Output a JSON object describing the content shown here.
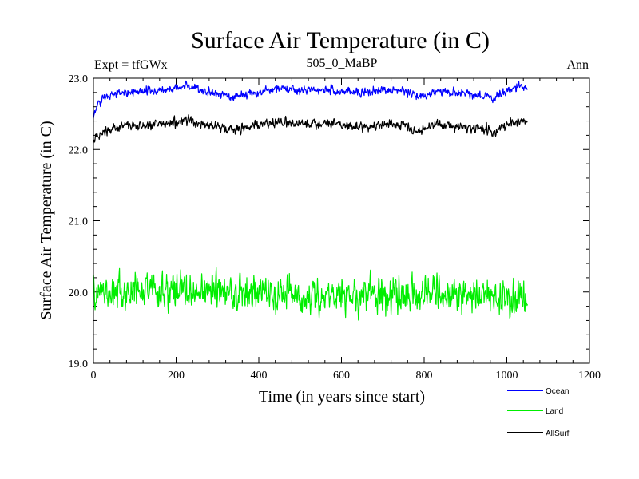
{
  "chart_data": {
    "type": "line",
    "title": "Surface Air Temperature (in C)",
    "subtitle_left": "Expt = tfGWx",
    "subtitle_center": "505_0_MaBP",
    "subtitle_right": "Ann",
    "xlabel": "Time (in years since start)",
    "ylabel": "Surface Air Temperature (in C)",
    "xlim": [
      0,
      1200
    ],
    "ylim": [
      19.0,
      23.0
    ],
    "x_ticks": [
      0,
      200,
      400,
      600,
      800,
      1000,
      1200
    ],
    "x_tick_labels": [
      "0",
      "200",
      "400",
      "600",
      "800",
      "1000",
      "1200"
    ],
    "y_ticks": [
      19.0,
      20.0,
      21.0,
      22.0,
      23.0
    ],
    "y_tick_labels": [
      "19.0",
      "20.0",
      "21.0",
      "22.0",
      "23.0"
    ],
    "grid": false,
    "legend_position": "bottom-right-outside",
    "series": [
      {
        "name": "Ocean",
        "color": "#0000ff",
        "noise": 0.04,
        "x": [
          0,
          10,
          30,
          60,
          100,
          150,
          200,
          230,
          260,
          300,
          340,
          380,
          420,
          450,
          500,
          550,
          600,
          650,
          700,
          750,
          790,
          820,
          850,
          900,
          950,
          965,
          1000,
          1030,
          1050
        ],
        "values": [
          22.47,
          22.62,
          22.75,
          22.8,
          22.8,
          22.82,
          22.85,
          22.9,
          22.83,
          22.78,
          22.74,
          22.78,
          22.82,
          22.86,
          22.82,
          22.84,
          22.83,
          22.8,
          22.83,
          22.82,
          22.73,
          22.8,
          22.82,
          22.78,
          22.75,
          22.72,
          22.82,
          22.88,
          22.85
        ]
      },
      {
        "name": "Land",
        "color": "#00ee00",
        "noise": 0.17,
        "x": [
          0,
          100,
          200,
          300,
          400,
          500,
          600,
          700,
          800,
          900,
          1000,
          1050
        ],
        "values": [
          20.0,
          20.0,
          20.0,
          20.0,
          20.0,
          19.98,
          19.95,
          19.95,
          20.0,
          19.93,
          19.92,
          19.95
        ]
      },
      {
        "name": "AllSurf",
        "color": "#000000",
        "noise": 0.045,
        "x": [
          0,
          10,
          30,
          60,
          100,
          150,
          200,
          230,
          260,
          300,
          340,
          380,
          420,
          450,
          500,
          550,
          600,
          650,
          700,
          750,
          790,
          820,
          850,
          900,
          950,
          965,
          1000,
          1030,
          1050
        ],
        "values": [
          22.1,
          22.2,
          22.28,
          22.32,
          22.33,
          22.35,
          22.38,
          22.42,
          22.36,
          22.32,
          22.28,
          22.32,
          22.36,
          22.38,
          22.36,
          22.36,
          22.35,
          22.33,
          22.35,
          22.34,
          22.27,
          22.33,
          22.35,
          22.32,
          22.28,
          22.22,
          22.34,
          22.38,
          22.36
        ]
      }
    ]
  }
}
